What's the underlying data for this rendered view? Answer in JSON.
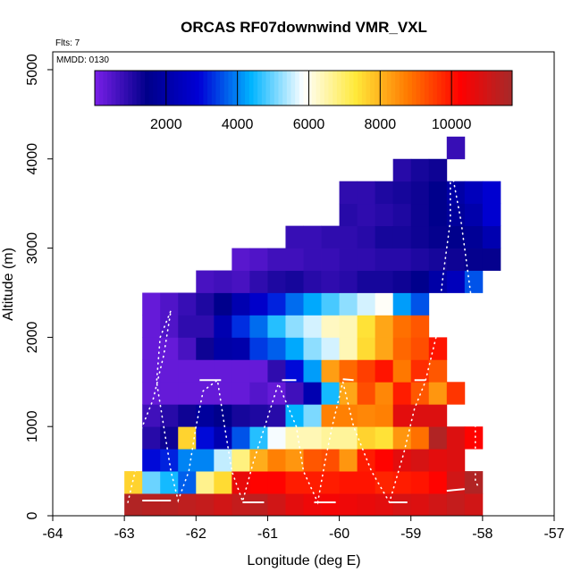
{
  "chart_data": {
    "type": "heatmap",
    "title": "ORCAS RF07downwind VMR_VXL",
    "flights_note": "Flts: 7",
    "date_note": "MMDD: 0130",
    "xlabel": "Longitude (deg E)",
    "ylabel": "Altitude (m)",
    "xlim": [
      -64,
      -57
    ],
    "ylim": [
      0,
      5200
    ],
    "x_ticks": [
      -64,
      -63,
      -62,
      -61,
      -60,
      -59,
      -58,
      -57
    ],
    "y_ticks": [
      0,
      1000,
      2000,
      3000,
      4000,
      5000
    ],
    "cell_width_deg": 0.25,
    "cell_height_m": 250,
    "colorbar": {
      "min": 0,
      "max": 11700,
      "ticks": [
        2000,
        4000,
        6000,
        8000,
        10000
      ],
      "tick_labels": [
        "2000",
        "4000",
        "6000",
        "8000",
        "10000"
      ],
      "stops": [
        "#7a1fe8",
        "#00008a",
        "#0000d6",
        "#00b4ff",
        "#ffffff",
        "#ffe93a",
        "#ff7a00",
        "#ff0000",
        "#a52a2a"
      ]
    },
    "grid_rows": [
      {
        "alt": 0,
        "lon0": -63.0,
        "values": [
          11500,
          11400,
          11400,
          11300,
          11200,
          11000,
          11200,
          11300,
          11000,
          10700,
          10500,
          10400,
          10500,
          10600,
          10700,
          10900,
          10800,
          11000,
          11200,
          11000
        ]
      },
      {
        "alt": 250,
        "lon0": -63.0,
        "values": [
          7600,
          5000,
          4500,
          3700,
          6700,
          7500,
          10600,
          10200,
          10200,
          9900,
          9900,
          9900,
          10000,
          10000,
          9800,
          9900,
          10000,
          10200,
          11000,
          11500
        ]
      },
      {
        "alt": 500,
        "lon0": -62.75,
        "values": [
          3000,
          3200,
          4000,
          4000,
          5500,
          6800,
          8100,
          8700,
          8400,
          9200,
          9300,
          8400,
          9900,
          10200,
          10700,
          10900,
          10700,
          10800
        ]
      },
      {
        "alt": 750,
        "lon0": -62.75,
        "values": [
          1000,
          1300,
          7600,
          3000,
          2200,
          3600,
          4600,
          5800,
          6400,
          6400,
          6600,
          6600,
          7600,
          7400,
          8400,
          8900,
          11500,
          10800,
          10200
        ]
      },
      {
        "alt": 1000,
        "lon0": -62.75,
        "values": [
          700,
          1000,
          1300,
          1800,
          1500,
          1200,
          1100,
          1000,
          4400,
          5100,
          8700,
          8700,
          8600,
          8700,
          10700,
          10800,
          10800
        ]
      },
      {
        "alt": 1250,
        "lon0": -62.75,
        "values": [
          250,
          250,
          250,
          250,
          250,
          250,
          450,
          250,
          700,
          2200,
          4500,
          8200,
          9300,
          8600,
          9900,
          9200,
          8400,
          9600
        ]
      },
      {
        "alt": 1500,
        "lon0": -62.75,
        "values": [
          250,
          250,
          250,
          250,
          250,
          250,
          250,
          900,
          3000,
          4200,
          8300,
          9000,
          9500,
          10000,
          8800,
          9700,
          9200
        ]
      },
      {
        "alt": 1750,
        "lon0": -62.75,
        "values": [
          250,
          250,
          600,
          1300,
          2000,
          2100,
          3400,
          3700,
          4300,
          5200,
          5600,
          6400,
          7500,
          8200,
          9000,
          9300,
          10000
        ]
      },
      {
        "alt": 2000,
        "lon0": -62.75,
        "values": [
          250,
          500,
          900,
          900,
          2200,
          3300,
          3800,
          4600,
          5200,
          5600,
          6300,
          6400,
          7400,
          8200,
          8900,
          9200
        ]
      },
      {
        "alt": 2250,
        "lon0": -62.75,
        "values": [
          250,
          500,
          800,
          1100,
          1500,
          2200,
          2700,
          3200,
          3800,
          4300,
          4800,
          5200,
          5600,
          5900,
          4200,
          3600
        ]
      },
      {
        "alt": 2500,
        "lon0": -62.0,
        "values": [
          600,
          700,
          600,
          900,
          1100,
          1200,
          1000,
          900,
          1000,
          1200,
          1200,
          1300,
          1500,
          2000,
          2400,
          3600
        ]
      },
      {
        "alt": 2750,
        "lon0": -61.5,
        "values": [
          400,
          500,
          700,
          700,
          800,
          800,
          900,
          900,
          1000,
          1000,
          1100,
          1200,
          1300,
          1400,
          1400
        ]
      },
      {
        "alt": 3000,
        "lon0": -60.75,
        "values": [
          800,
          800,
          900,
          900,
          1000,
          1200,
          1200,
          1300,
          1400,
          1500,
          1700,
          2200
        ]
      },
      {
        "alt": 3250,
        "lon0": -60.0,
        "values": [
          1000,
          900,
          1000,
          1100,
          1300,
          1500,
          1800,
          2100,
          2800
        ]
      },
      {
        "alt": 3500,
        "lon0": -60.0,
        "values": [
          900,
          900,
          1100,
          1200,
          1300,
          1500,
          2000,
          2400,
          2800
        ]
      },
      {
        "alt": 3750,
        "lon0": -59.25,
        "values": [
          1000,
          1200,
          1300
        ]
      },
      {
        "alt": 4000,
        "lon0": -58.5,
        "values": [
          800
        ]
      }
    ],
    "flight_track": {
      "dotted": [
        [
          -62.95,
          150
        ],
        [
          -62.85,
          500
        ],
        [
          -62.8,
          900
        ],
        [
          -62.6,
          1300
        ],
        [
          -62.45,
          1800
        ],
        [
          -62.35,
          2300
        ],
        [
          -62.5,
          2000
        ],
        [
          -62.55,
          1500
        ],
        [
          -62.45,
          1000
        ],
        [
          -62.35,
          500
        ],
        [
          -62.25,
          170
        ],
        [
          -62.1,
          500
        ],
        [
          -62.0,
          1000
        ],
        [
          -61.9,
          1400
        ],
        [
          -61.7,
          1520
        ],
        [
          -61.6,
          1000
        ],
        [
          -61.5,
          500
        ],
        [
          -61.35,
          160
        ],
        [
          -61.2,
          600
        ],
        [
          -61.0,
          1100
        ],
        [
          -60.85,
          1480
        ],
        [
          -60.6,
          1000
        ],
        [
          -60.5,
          500
        ],
        [
          -60.3,
          150
        ],
        [
          -60.2,
          600
        ],
        [
          -60.1,
          1000
        ],
        [
          -59.95,
          1500
        ],
        [
          -59.8,
          1000
        ],
        [
          -59.55,
          500
        ],
        [
          -59.3,
          150
        ],
        [
          -59.1,
          700
        ],
        [
          -58.95,
          1200
        ],
        [
          -58.8,
          1500
        ],
        [
          -58.65,
          2000
        ],
        [
          -58.55,
          2700
        ],
        [
          -58.45,
          3300
        ],
        [
          -58.45,
          3950
        ],
        [
          -58.3,
          3300
        ],
        [
          -58.15,
          2400
        ],
        [
          -58.1,
          1500
        ],
        [
          -58.1,
          900
        ],
        [
          -58.1,
          400
        ],
        [
          -58.05,
          300
        ]
      ],
      "solid": [
        [
          [
            -62.75,
            170
          ],
          [
            -62.35,
            170
          ]
        ],
        [
          [
            -61.95,
            1520
          ],
          [
            -61.65,
            1520
          ]
        ],
        [
          [
            -61.35,
            150
          ],
          [
            -61.05,
            150
          ]
        ],
        [
          [
            -60.8,
            1520
          ],
          [
            -60.6,
            1520
          ]
        ],
        [
          [
            -60.35,
            150
          ],
          [
            -60.05,
            150
          ]
        ],
        [
          [
            -59.95,
            1530
          ],
          [
            -59.8,
            1520
          ]
        ],
        [
          [
            -59.3,
            150
          ],
          [
            -59.05,
            150
          ]
        ],
        [
          [
            -58.95,
            1520
          ],
          [
            -58.8,
            1520
          ]
        ],
        [
          [
            -58.5,
            280
          ],
          [
            -58.25,
            300
          ]
        ]
      ]
    }
  }
}
